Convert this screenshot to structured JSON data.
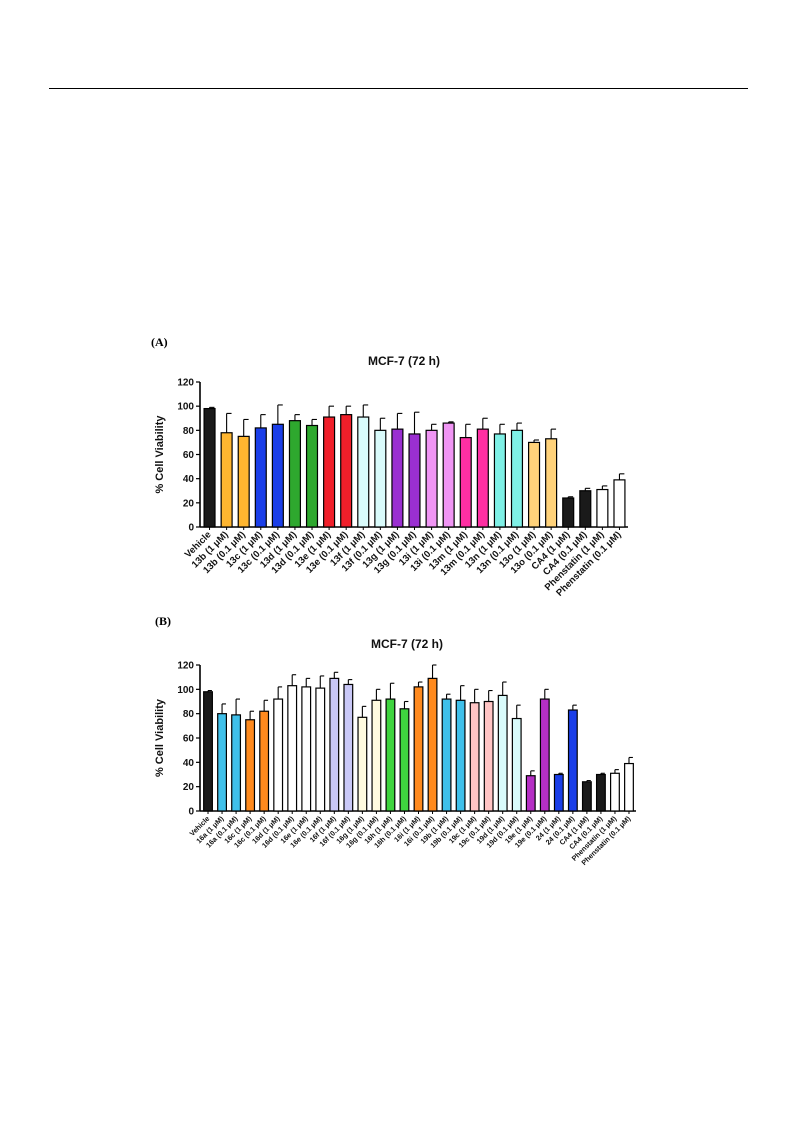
{
  "panels": [
    {
      "label": "(A)"
    },
    {
      "label": "(B)"
    }
  ],
  "chart_data": [
    {
      "type": "bar",
      "title": "MCF-7 (72 h)",
      "ylabel": "% Cell Viability",
      "xlabel": "",
      "ylim": [
        0,
        120
      ],
      "yticks": [
        0,
        20,
        40,
        60,
        80,
        100,
        120
      ],
      "grid": false,
      "categories": [
        "Vehicle",
        "13b (1 μM)",
        "13b (0.1 μM)",
        "13c (1 μM)",
        "13c (0.1 μM)",
        "13d (1 μM)",
        "13d (0.1 μM)",
        "13e (1 μM)",
        "13e (0.1 μM)",
        "13f (1 μM)",
        "13f (0.1 μM)",
        "13g (1 μM)",
        "13g (0.1 μM)",
        "13i (1 μM)",
        "13i (0.1 μM)",
        "13m (1 μM)",
        "13m (0.1 μM)",
        "13n (1 μM)",
        "13n (0.1 μM)",
        "13o (1 μM)",
        "13o (0.1 μM)",
        "CA4 (1 μM)",
        "CA4 (0.1 μM)",
        "Phenstatin (1 μM)",
        "Phenstatin (0.1 μM)"
      ],
      "values": [
        98,
        78,
        75,
        82,
        85,
        88,
        84,
        91,
        93,
        91,
        80,
        81,
        77,
        80,
        86,
        74,
        81,
        77,
        80,
        70,
        73,
        24,
        30,
        31,
        39
      ],
      "errors": [
        1,
        16,
        14,
        11,
        16,
        5,
        5,
        9,
        7,
        10,
        10,
        13,
        18,
        5,
        1,
        11,
        9,
        8,
        6,
        2,
        8,
        1,
        2,
        3,
        5
      ],
      "colors": [
        "#1a1a1a",
        "#ffb630",
        "#ffb630",
        "#1a3ee8",
        "#1a3ee8",
        "#2ea82e",
        "#2ea82e",
        "#f01f2a",
        "#f01f2a",
        "#d9fbfb",
        "#d9fbfb",
        "#9a2fd1",
        "#9a2fd1",
        "#f095f4",
        "#f095f4",
        "#ff2fa3",
        "#ff2fa3",
        "#7ff0e6",
        "#7ff0e6",
        "#ffd27a",
        "#ffd27a",
        "#1a1a1a",
        "#1a1a1a",
        "#ffffff",
        "#ffffff"
      ]
    },
    {
      "type": "bar",
      "title": "MCF-7 (72 h)",
      "ylabel": "% Cell Viability",
      "xlabel": "",
      "ylim": [
        0,
        120
      ],
      "yticks": [
        0,
        20,
        40,
        60,
        80,
        100,
        120
      ],
      "grid": false,
      "categories": [
        "Vehicle",
        "16a (1 μM)",
        "16a (0.1 μM)",
        "16c (1 μM)",
        "16c (0.1 μM)",
        "16d (1 μM)",
        "16d (0.1 μM)",
        "16e (1 μM)",
        "16e (0.1 μM)",
        "16f (1 μM)",
        "16f (0.1 μM)",
        "16g (1 μM)",
        "16g (0.1 μM)",
        "16h (1 μM)",
        "16h (0.1 μM)",
        "16i (1 μM)",
        "16i (0.1 μM)",
        "19b (1 μM)",
        "19b (0.1 μM)",
        "19c (1 μM)",
        "19c (0.1 μM)",
        "19d (1 μM)",
        "19d (0.1 μM)",
        "19e (1 μM)",
        "19e (0.1 μM)",
        "24 (1 μM)",
        "24 (0.1 μM)",
        "CA4 (1 μM)",
        "CA4 (0.1 μM)",
        "Phenstatin (1 μM)",
        "Phenstatin (0.1 μM)"
      ],
      "values": [
        98,
        80,
        79,
        75,
        82,
        92,
        103,
        102,
        101,
        109,
        104,
        77,
        91,
        92,
        84,
        102,
        109,
        92,
        91,
        89,
        90,
        95,
        76,
        29,
        92,
        30,
        83,
        24,
        30,
        31,
        39
      ],
      "errors": [
        1,
        8,
        13,
        7,
        9,
        10,
        9,
        7,
        10,
        5,
        4,
        9,
        9,
        13,
        6,
        4,
        11,
        4,
        12,
        11,
        9,
        11,
        11,
        4,
        8,
        1,
        4,
        1,
        1,
        3,
        5
      ],
      "colors": [
        "#1a1a1a",
        "#3fc0ea",
        "#3fc0ea",
        "#ff8a1e",
        "#ff8a1e",
        "#ffffff",
        "#ffffff",
        "#ffffff",
        "#ffffff",
        "#c9c8f7",
        "#c9c8f7",
        "#fffbe0",
        "#fffbe0",
        "#3fd43f",
        "#3fd43f",
        "#ff8a1e",
        "#ff8a1e",
        "#3fc0ea",
        "#3fc0ea",
        "#ffc4c4",
        "#ffc4c4",
        "#d9fbfb",
        "#d9fbfb",
        "#b52fc4",
        "#b52fc4",
        "#1a3ee8",
        "#1a3ee8",
        "#1a1a1a",
        "#1a1a1a",
        "#ffffff",
        "#ffffff"
      ]
    }
  ]
}
